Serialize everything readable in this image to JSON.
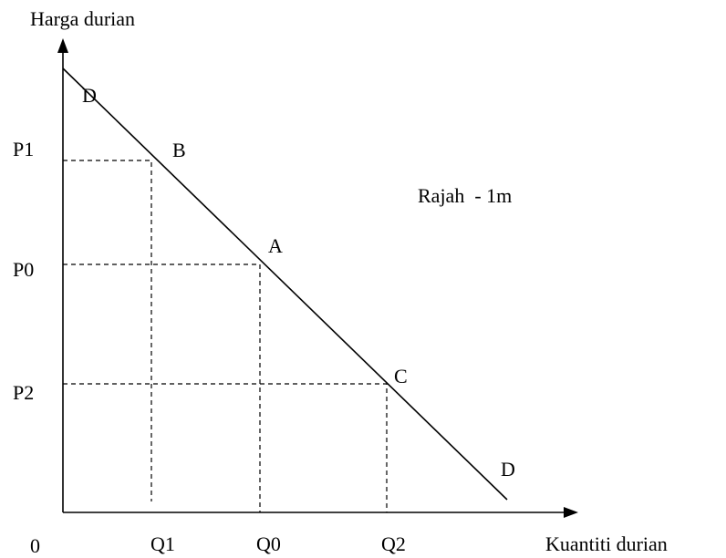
{
  "axes": {
    "y_label": "Harga durian",
    "x_label": "Kuantiti durian",
    "origin": "0"
  },
  "prices": [
    "P1",
    "P0",
    "P2"
  ],
  "quantities": [
    "Q1",
    "Q0",
    "Q2"
  ],
  "points": [
    "D",
    "B",
    "A",
    "C",
    "D"
  ],
  "caption": "Rajah  - 1m"
}
